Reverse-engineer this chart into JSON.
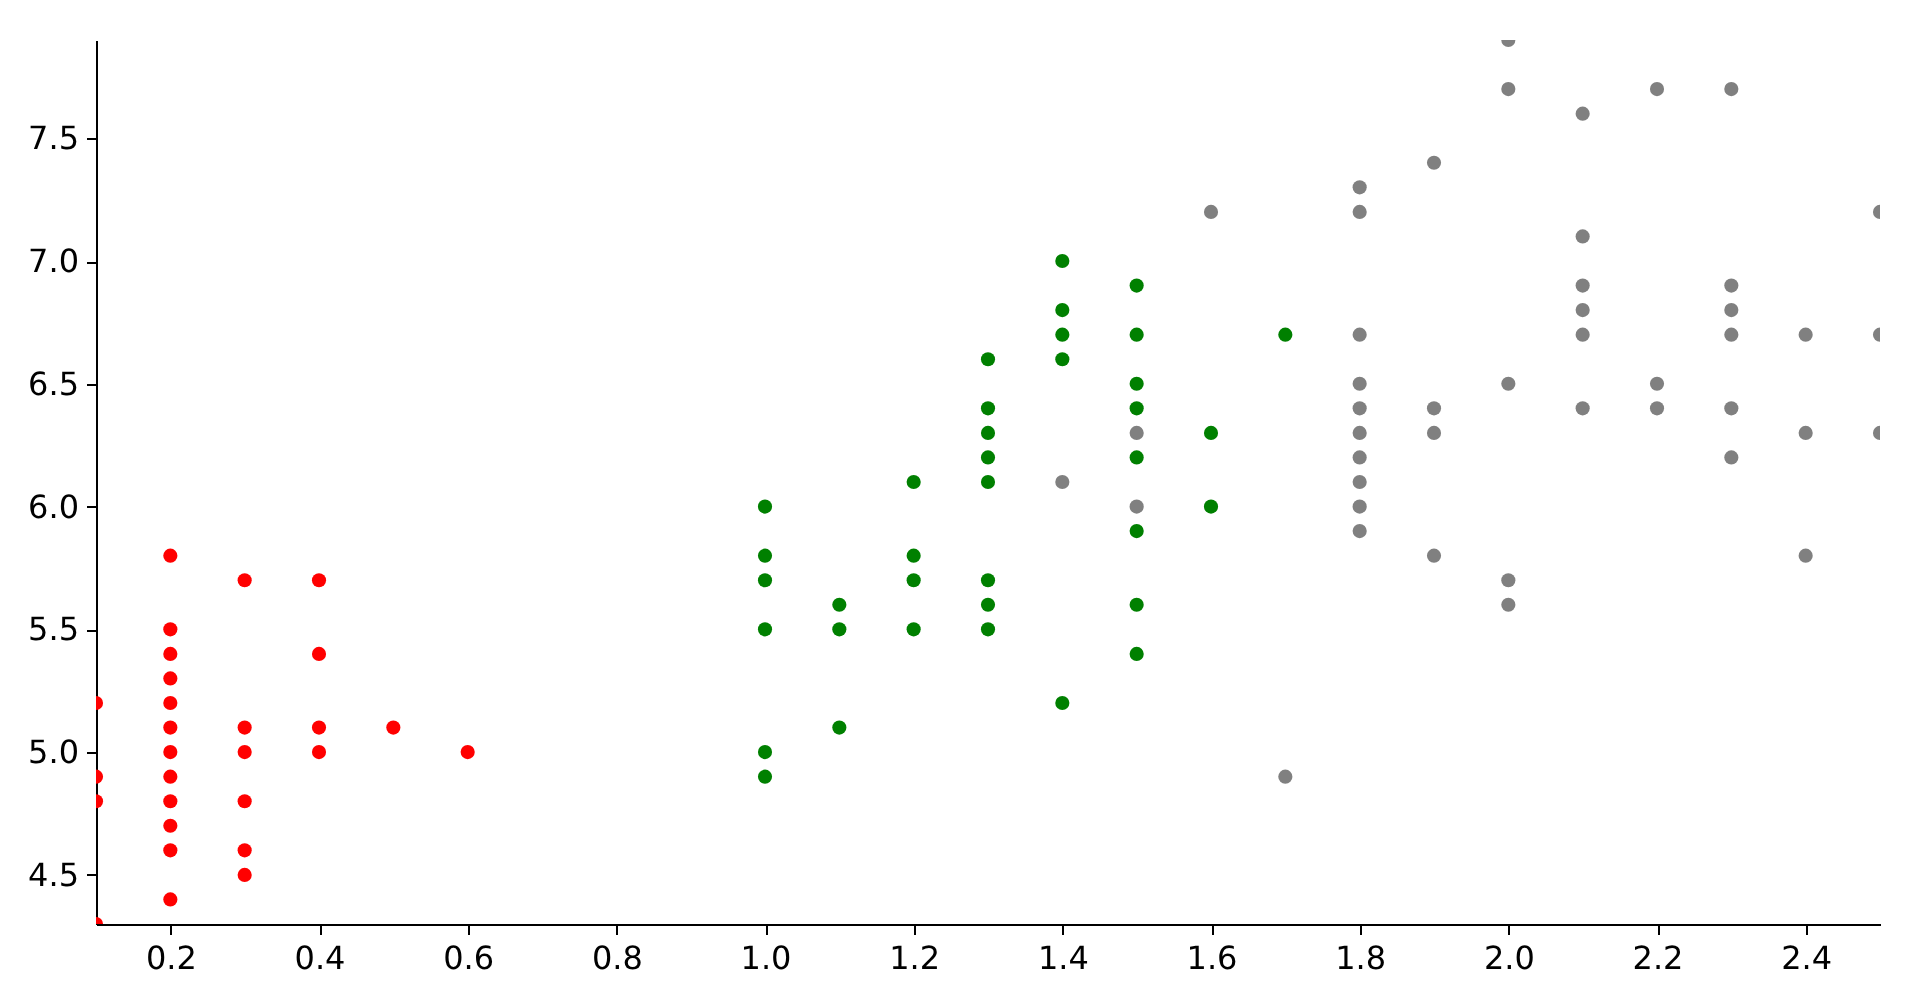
{
  "chart_data": {
    "type": "scatter",
    "marker": "circle",
    "grid": false,
    "xlim": [
      0.1,
      2.5
    ],
    "ylim": [
      4.3,
      7.9
    ],
    "xticks": [
      0.2,
      0.4,
      0.6,
      0.8,
      {
        "value": 1,
        "label": "1.0"
      },
      1.2,
      1.4,
      1.6,
      1.8,
      {
        "value": 2,
        "label": "2.0"
      },
      2.2,
      2.4
    ],
    "yticks": [
      4.5,
      {
        "value": 5,
        "label": "5.0"
      },
      5.5,
      {
        "value": 6,
        "label": "6.0"
      },
      6.5,
      {
        "value": 7,
        "label": "7.0"
      },
      7.5
    ],
    "series": [
      {
        "color": "#ff0000",
        "x": [
          0.1,
          0.1,
          0.1,
          0.1,
          0.2,
          0.2,
          0.2,
          0.2,
          0.2,
          0.2,
          0.2,
          0.2,
          0.2,
          0.2,
          0.2,
          0.2,
          0.3,
          0.3,
          0.3,
          0.3,
          0.3,
          0.3,
          0.4,
          0.4,
          0.4,
          0.4,
          0.5,
          0.6
        ],
        "values": [
          5.2,
          4.9,
          4.8,
          4.3,
          5.8,
          5.5,
          5.4,
          5.3,
          5.2,
          5.1,
          5.0,
          4.9,
          4.8,
          4.7,
          4.6,
          4.4,
          5.7,
          5.1,
          5.0,
          4.8,
          4.6,
          4.5,
          5.7,
          5.4,
          5.1,
          5.0,
          5.1,
          5.0
        ]
      },
      {
        "color": "#008000",
        "x": [
          1.0,
          1.0,
          1.0,
          1.0,
          1.0,
          1.0,
          1.1,
          1.1,
          1.1,
          1.2,
          1.2,
          1.2,
          1.2,
          1.3,
          1.3,
          1.3,
          1.3,
          1.3,
          1.3,
          1.3,
          1.3,
          1.4,
          1.4,
          1.4,
          1.4,
          1.4,
          1.5,
          1.5,
          1.5,
          1.5,
          1.5,
          1.5,
          1.5,
          1.5,
          1.6,
          1.6,
          1.7
        ],
        "values": [
          6.0,
          5.8,
          5.7,
          5.5,
          5.0,
          4.9,
          5.6,
          5.5,
          5.1,
          6.1,
          5.8,
          5.7,
          5.5,
          6.6,
          6.4,
          6.3,
          6.2,
          6.1,
          5.7,
          5.6,
          5.5,
          7.0,
          6.8,
          6.7,
          6.6,
          5.2,
          6.9,
          6.7,
          6.5,
          6.4,
          6.2,
          5.9,
          5.6,
          5.4,
          6.3,
          6.0,
          6.7
        ]
      },
      {
        "color": "#808080",
        "x": [
          1.4,
          1.5,
          1.5,
          1.6,
          1.7,
          1.8,
          1.8,
          1.8,
          1.8,
          1.8,
          1.8,
          1.8,
          1.8,
          1.8,
          1.8,
          1.9,
          1.9,
          1.9,
          1.9,
          2.0,
          2.0,
          2.0,
          2.0,
          2.0,
          2.1,
          2.1,
          2.1,
          2.1,
          2.1,
          2.1,
          2.2,
          2.2,
          2.2,
          2.3,
          2.3,
          2.3,
          2.3,
          2.3,
          2.3,
          2.4,
          2.4,
          2.4,
          2.5,
          2.5,
          2.5
        ],
        "values": [
          6.1,
          6.3,
          6.0,
          7.2,
          4.9,
          7.3,
          7.2,
          6.7,
          6.5,
          6.4,
          6.3,
          6.2,
          6.1,
          6.0,
          5.9,
          7.4,
          6.4,
          6.3,
          5.8,
          7.9,
          7.7,
          6.5,
          5.7,
          5.6,
          7.6,
          7.1,
          6.9,
          6.8,
          6.7,
          6.4,
          7.7,
          6.5,
          6.4,
          7.7,
          6.9,
          6.8,
          6.7,
          6.4,
          6.2,
          6.7,
          6.3,
          5.8,
          7.2,
          6.7,
          6.3
        ]
      }
    ]
  }
}
